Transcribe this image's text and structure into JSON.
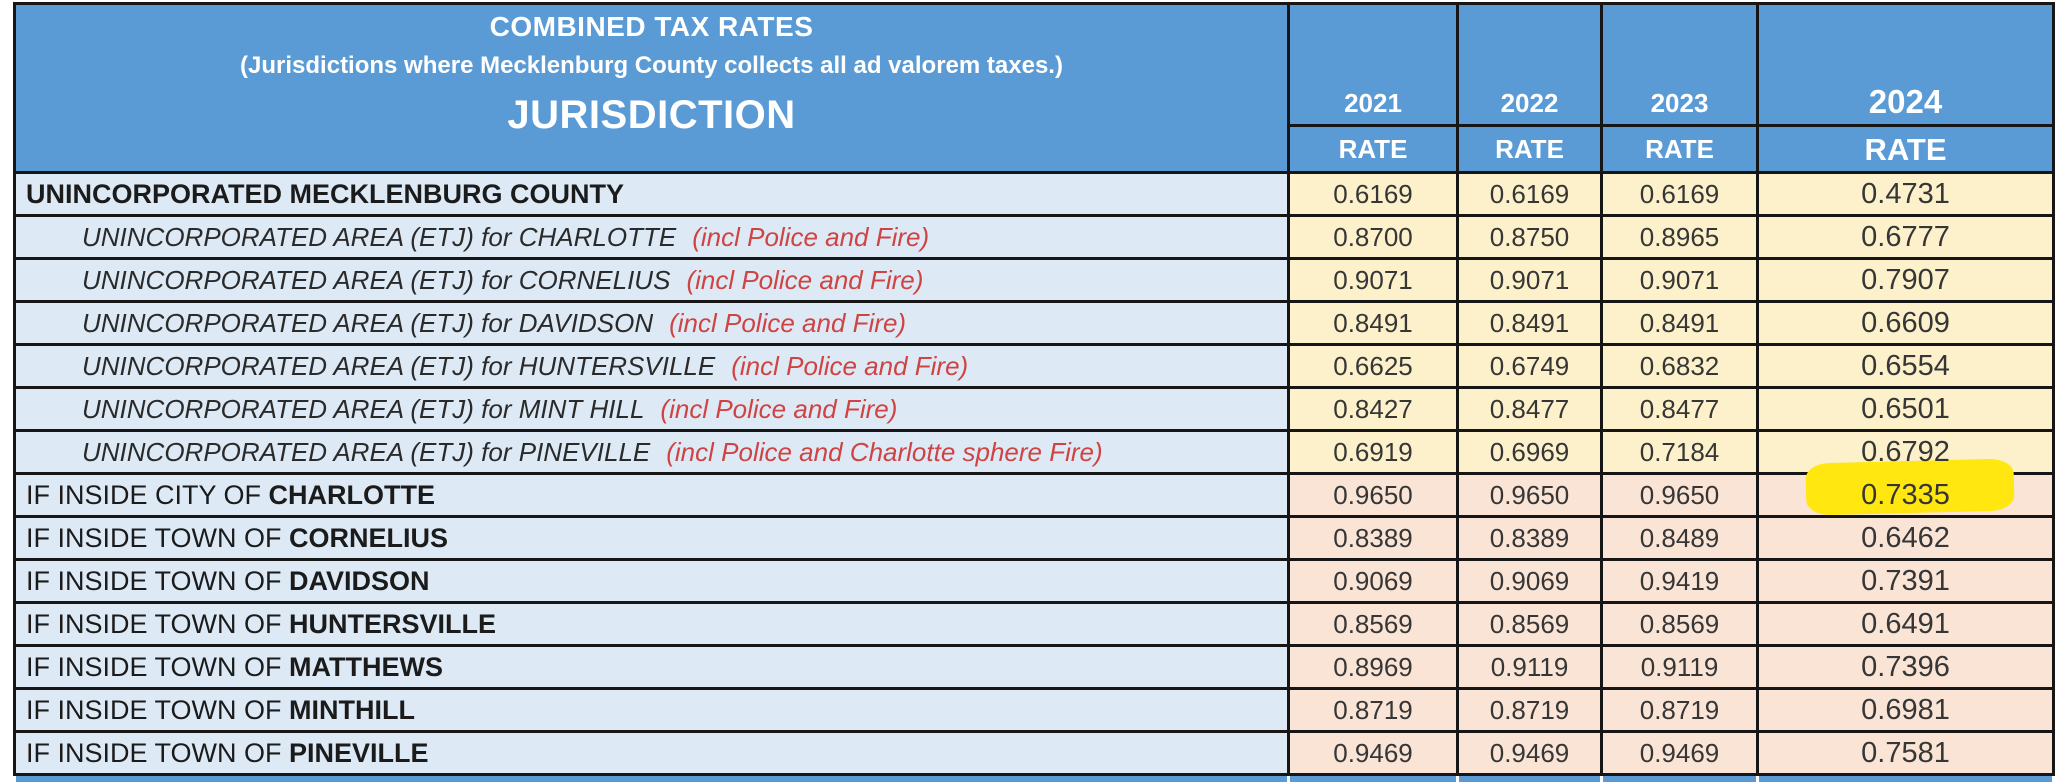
{
  "table": {
    "title": "COMBINED TAX RATES",
    "subtitle": "(Jurisdictions where Mecklenburg County collects all ad valorem taxes.)",
    "jurisdiction_label": "JURISDICTION",
    "years": [
      "2021",
      "2022",
      "2023",
      "2024"
    ],
    "rate_label": "RATE",
    "colors": {
      "header_blue": "#5B9BD5",
      "row_blue": "#DDEAF6",
      "band_yellow": "#FCF1CB",
      "band_pink": "#FAE4D5",
      "highlight_yellow": "#FFE70F",
      "note_red": "#CF4343"
    },
    "rows": [
      {
        "label": "UNINCORPORATED MECKLENBURG COUNTY",
        "emphasis": "",
        "note": "",
        "style": "main",
        "band": "yellow",
        "rates": [
          "0.6169",
          "0.6169",
          "0.6169",
          "0.4731"
        ],
        "highlight_index": -1
      },
      {
        "label": "UNINCORPORATED AREA (ETJ) for CHARLOTTE",
        "emphasis": "",
        "note": "(incl Police and Fire)",
        "style": "etj",
        "band": "yellow",
        "rates": [
          "0.8700",
          "0.8750",
          "0.8965",
          "0.6777"
        ],
        "highlight_index": -1
      },
      {
        "label": "UNINCORPORATED AREA (ETJ) for CORNELIUS",
        "emphasis": "",
        "note": "(incl Police and Fire)",
        "style": "etj",
        "band": "yellow",
        "rates": [
          "0.9071",
          "0.9071",
          "0.9071",
          "0.7907"
        ],
        "highlight_index": -1
      },
      {
        "label": "UNINCORPORATED AREA (ETJ) for DAVIDSON",
        "emphasis": "",
        "note": "(incl Police and Fire)",
        "style": "etj",
        "band": "yellow",
        "rates": [
          "0.8491",
          "0.8491",
          "0.8491",
          "0.6609"
        ],
        "highlight_index": -1
      },
      {
        "label": "UNINCORPORATED AREA (ETJ) for HUNTERSVILLE",
        "emphasis": "",
        "note": "(incl Police and Fire)",
        "style": "etj",
        "band": "yellow",
        "rates": [
          "0.6625",
          "0.6749",
          "0.6832",
          "0.6554"
        ],
        "highlight_index": -1
      },
      {
        "label": "UNINCORPORATED AREA (ETJ) for MINT HILL",
        "emphasis": "",
        "note": "(incl Police and Fire)",
        "style": "etj",
        "band": "yellow",
        "rates": [
          "0.8427",
          "0.8477",
          "0.8477",
          "0.6501"
        ],
        "highlight_index": -1
      },
      {
        "label": "UNINCORPORATED AREA (ETJ) for PINEVILLE",
        "emphasis": "",
        "note": "(incl Police and Charlotte sphere Fire)",
        "style": "etj",
        "band": "yellow",
        "rates": [
          "0.6919",
          "0.6969",
          "0.7184",
          "0.6792"
        ],
        "highlight_index": -1
      },
      {
        "label": "IF INSIDE CITY OF",
        "emphasis": "CHARLOTTE",
        "note": "",
        "style": "inside",
        "band": "pink",
        "rates": [
          "0.9650",
          "0.9650",
          "0.9650",
          "0.7335"
        ],
        "highlight_index": 3
      },
      {
        "label": "IF INSIDE TOWN OF",
        "emphasis": "CORNELIUS",
        "note": "",
        "style": "inside",
        "band": "pink",
        "rates": [
          "0.8389",
          "0.8389",
          "0.8489",
          "0.6462"
        ],
        "highlight_index": -1
      },
      {
        "label": "IF INSIDE TOWN OF",
        "emphasis": "DAVIDSON",
        "note": "",
        "style": "inside",
        "band": "pink",
        "rates": [
          "0.9069",
          "0.9069",
          "0.9419",
          "0.7391"
        ],
        "highlight_index": -1
      },
      {
        "label": "IF INSIDE TOWN OF",
        "emphasis": "HUNTERSVILLE",
        "note": "",
        "style": "inside",
        "band": "pink",
        "rates": [
          "0.8569",
          "0.8569",
          "0.8569",
          "0.6491"
        ],
        "highlight_index": -1
      },
      {
        "label": "IF INSIDE TOWN OF",
        "emphasis": "MATTHEWS",
        "note": "",
        "style": "inside",
        "band": "pink",
        "rates": [
          "0.8969",
          "0.9119",
          "0.9119",
          "0.7396"
        ],
        "highlight_index": -1
      },
      {
        "label": "IF INSIDE TOWN OF",
        "emphasis": "MINTHILL",
        "note": "",
        "style": "inside",
        "band": "pink",
        "rates": [
          "0.8719",
          "0.8719",
          "0.8719",
          "0.6981"
        ],
        "highlight_index": -1
      },
      {
        "label": "IF INSIDE TOWN OF",
        "emphasis": "PINEVILLE",
        "note": "",
        "style": "inside",
        "band": "pink",
        "rates": [
          "0.9469",
          "0.9469",
          "0.9469",
          "0.7581"
        ],
        "highlight_index": -1
      }
    ]
  }
}
